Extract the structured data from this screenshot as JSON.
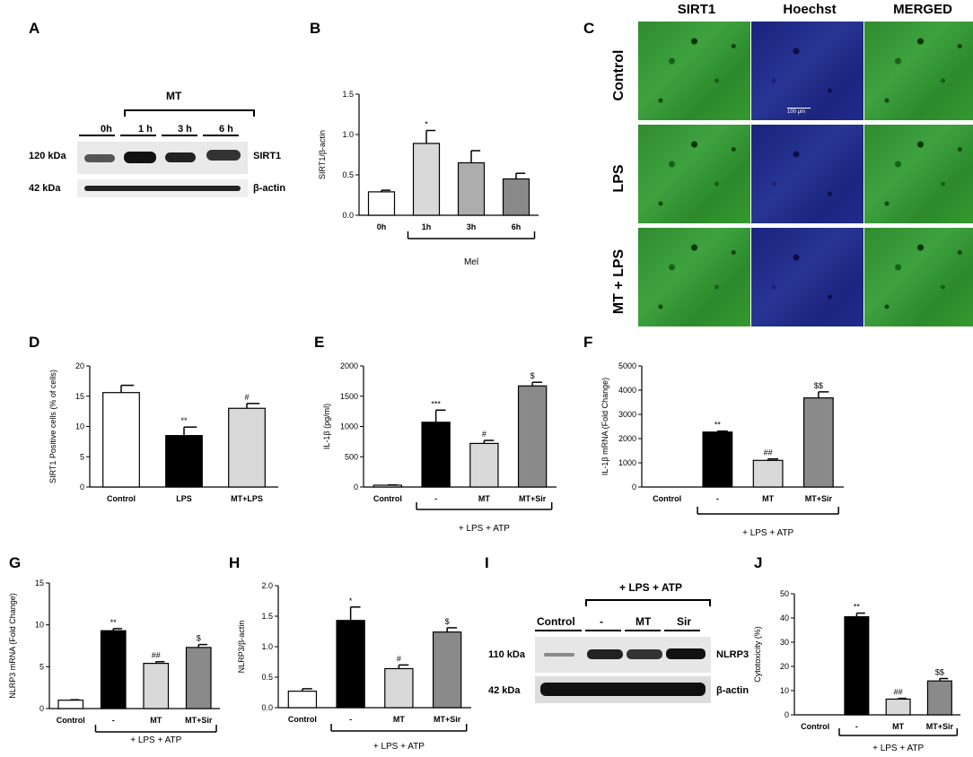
{
  "panel_letters": {
    "A": "A",
    "B": "B",
    "C": "C",
    "D": "D",
    "E": "E",
    "F": "F",
    "G": "G",
    "H": "H",
    "I": "I",
    "J": "J"
  },
  "blot_a": {
    "treatment": "MT",
    "lanes": [
      "0h",
      "1 h",
      "3 h",
      "6 h"
    ],
    "size_top": "120 kDa",
    "size_bottom": "42 kDa",
    "protein_top": "SIRT1",
    "protein_bottom": "β-actin"
  },
  "microscopy_c": {
    "columns": [
      "SIRT1",
      "Hoechst",
      "MERGED"
    ],
    "rows": [
      "Control",
      "LPS",
      "MT + LPS"
    ],
    "scale_label": "100 μm"
  },
  "blot_i": {
    "treatment": "+ LPS + ATP",
    "lanes": [
      "Control",
      "-",
      "MT",
      "Sir"
    ],
    "size_top": "110 kDa",
    "size_bottom": "42 kDa",
    "protein_top": "NLRP3",
    "protein_bottom": "β-actin"
  },
  "chart_data": [
    {
      "id": "B",
      "type": "bar",
      "categories": [
        "0h",
        "1h",
        "3h",
        "6h"
      ],
      "values": [
        0.29,
        0.89,
        0.65,
        0.45
      ],
      "errors": [
        0.02,
        0.16,
        0.15,
        0.07
      ],
      "marks": [
        "",
        "*",
        "",
        ""
      ],
      "colors": [
        "#ffffff",
        "#d9d9d9",
        "#adadad",
        "#8a8a8a"
      ],
      "ylabel": "SIRT1/β-actin",
      "ylim": [
        0,
        1.5
      ],
      "yticks": [
        "0.0",
        "0.5",
        "1.0",
        "1.5"
      ],
      "bracket_label": "Mel",
      "bracket_from": 1,
      "bracket_to": 3
    },
    {
      "id": "D",
      "type": "bar",
      "categories": [
        "Control",
        "LPS",
        "MT+LPS"
      ],
      "values": [
        15.6,
        8.5,
        13.0
      ],
      "errors": [
        1.2,
        1.4,
        0.8
      ],
      "marks": [
        "",
        "**",
        "#"
      ],
      "colors": [
        "#ffffff",
        "#000000",
        "#d9d9d9"
      ],
      "ylabel": "SIRT1 Positive cells (% of cells)",
      "ylim": [
        0,
        20
      ],
      "yticks": [
        "0",
        "5",
        "10",
        "15",
        "20"
      ]
    },
    {
      "id": "E",
      "type": "bar",
      "categories": [
        "Control",
        "-",
        "MT",
        "MT+Sir"
      ],
      "values": [
        30,
        1070,
        720,
        1670
      ],
      "errors": [
        5,
        200,
        50,
        60
      ],
      "marks": [
        "",
        "***",
        "#",
        "$"
      ],
      "colors": [
        "#ffffff",
        "#000000",
        "#d9d9d9",
        "#8a8a8a"
      ],
      "ylabel": "IL-1β (pg/ml)",
      "ylim": [
        0,
        2000
      ],
      "yticks": [
        "0",
        "500",
        "1000",
        "1500",
        "2000"
      ],
      "bracket_label": "+ LPS + ATP",
      "bracket_from": 1,
      "bracket_to": 3
    },
    {
      "id": "F",
      "type": "bar",
      "categories": [
        "Control",
        "-",
        "MT",
        "MT+Sir"
      ],
      "values": [
        0,
        2270,
        1100,
        3680
      ],
      "errors": [
        0,
        40,
        60,
        250
      ],
      "marks": [
        "",
        "**",
        "##",
        "$$"
      ],
      "colors": [
        "#ffffff",
        "#000000",
        "#d9d9d9",
        "#8a8a8a"
      ],
      "ylabel": "IL-1β mRNA (Fold Change)",
      "ylim": [
        0,
        5000
      ],
      "yticks": [
        "0",
        "1000",
        "2000",
        "3000",
        "4000",
        "5000"
      ],
      "bracket_label": "+ LPS + ATP",
      "bracket_from": 1,
      "bracket_to": 3
    },
    {
      "id": "G",
      "type": "bar",
      "categories": [
        "Control",
        "-",
        "MT",
        "MT+Sir"
      ],
      "values": [
        1.0,
        9.3,
        5.4,
        7.3
      ],
      "errors": [
        0.05,
        0.25,
        0.2,
        0.35
      ],
      "marks": [
        "",
        "**",
        "##",
        "$"
      ],
      "colors": [
        "#ffffff",
        "#000000",
        "#d9d9d9",
        "#8a8a8a"
      ],
      "ylabel": "NLRP3 mRNA (Fold Change)",
      "ylim": [
        0,
        15
      ],
      "yticks": [
        "0",
        "5",
        "10",
        "15"
      ],
      "bracket_label": "+ LPS + ATP",
      "bracket_from": 1,
      "bracket_to": 3
    },
    {
      "id": "H",
      "type": "bar",
      "categories": [
        "Control",
        "-",
        "MT",
        "MT+Sir"
      ],
      "values": [
        0.27,
        1.43,
        0.64,
        1.24
      ],
      "errors": [
        0.04,
        0.22,
        0.06,
        0.07
      ],
      "marks": [
        "",
        "*",
        "#",
        "$"
      ],
      "colors": [
        "#ffffff",
        "#000000",
        "#d9d9d9",
        "#8a8a8a"
      ],
      "ylabel": "NLRP3/β-actin",
      "ylim": [
        0,
        2.0
      ],
      "yticks": [
        "0.0",
        "0.5",
        "1.0",
        "1.5",
        "2.0"
      ],
      "bracket_label": "+ LPS + ATP",
      "bracket_from": 1,
      "bracket_to": 3
    },
    {
      "id": "J",
      "type": "bar",
      "categories": [
        "Control",
        "-",
        "MT",
        "MT+Sir"
      ],
      "values": [
        0,
        40.5,
        6.5,
        14.0
      ],
      "errors": [
        0,
        1.5,
        0.3,
        1.0
      ],
      "marks": [
        "",
        "**",
        "##",
        "$$"
      ],
      "colors": [
        "#ffffff",
        "#000000",
        "#d9d9d9",
        "#8a8a8a"
      ],
      "ylabel": "Cytotoxicity (%)",
      "ylim": [
        0,
        50
      ],
      "yticks": [
        "0",
        "10",
        "20",
        "30",
        "40",
        "50"
      ],
      "bracket_label": "+ LPS + ATP",
      "bracket_from": 1,
      "bracket_to": 3
    }
  ]
}
